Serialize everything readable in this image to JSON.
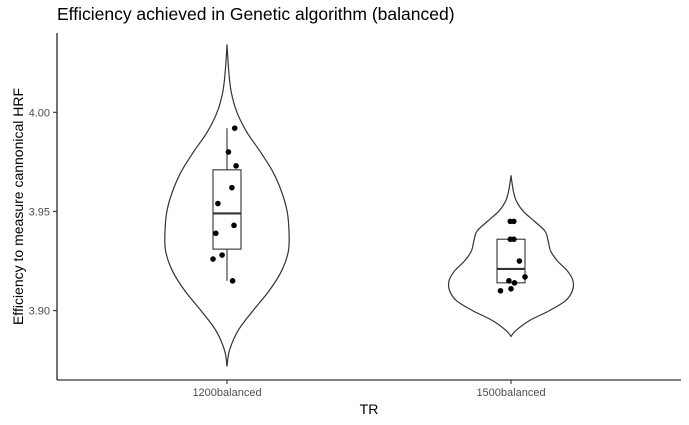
{
  "chart_data": {
    "type": "violin",
    "title": "Efficiency achieved in Genetic algorithm (balanced)",
    "xlabel": "TR",
    "ylabel": "Efficiency to measure cannonical HRF",
    "ylim": [
      3.865,
      4.04
    ],
    "yticks": [
      3.9,
      3.95,
      4.0
    ],
    "ytick_labels": [
      "3.90",
      "3.95",
      "4.00"
    ],
    "categories": [
      "1200balanced",
      "1500balanced"
    ],
    "grid": false,
    "legend": "none",
    "colors": {
      "outline": "#333333",
      "points": "#000000",
      "axis": "#000000",
      "tick_text": "#4d4d4d"
    },
    "groups": [
      {
        "category": "1200balanced",
        "violin_range": [
          3.872,
          4.034
        ],
        "violin_density": [
          [
            3.872,
            0.0
          ],
          [
            3.88,
            0.04
          ],
          [
            3.89,
            0.18
          ],
          [
            3.9,
            0.42
          ],
          [
            3.91,
            0.68
          ],
          [
            3.92,
            0.88
          ],
          [
            3.93,
            0.99
          ],
          [
            3.94,
            1.0
          ],
          [
            3.95,
            0.97
          ],
          [
            3.96,
            0.88
          ],
          [
            3.97,
            0.74
          ],
          [
            3.98,
            0.54
          ],
          [
            3.99,
            0.32
          ],
          [
            4.0,
            0.16
          ],
          [
            4.01,
            0.07
          ],
          [
            4.02,
            0.03
          ],
          [
            4.034,
            0.0
          ]
        ],
        "box": {
          "q1": 3.931,
          "median": 3.949,
          "q3": 3.971,
          "whisker_low": 3.915,
          "whisker_high": 3.992
        },
        "points": [
          [
            0.11,
            3.992
          ],
          [
            0.02,
            3.98
          ],
          [
            0.13,
            3.973
          ],
          [
            0.07,
            3.962
          ],
          [
            -0.13,
            3.954
          ],
          [
            0.1,
            3.943
          ],
          [
            -0.16,
            3.939
          ],
          [
            -0.07,
            3.928
          ],
          [
            -0.2,
            3.926
          ],
          [
            0.08,
            3.915
          ]
        ]
      },
      {
        "category": "1500balanced",
        "violin_range": [
          3.887,
          3.968
        ],
        "violin_density": [
          [
            3.887,
            0.0
          ],
          [
            3.89,
            0.08
          ],
          [
            3.895,
            0.3
          ],
          [
            3.9,
            0.62
          ],
          [
            3.905,
            0.88
          ],
          [
            3.91,
            0.99
          ],
          [
            3.915,
            1.0
          ],
          [
            3.92,
            0.91
          ],
          [
            3.925,
            0.75
          ],
          [
            3.93,
            0.64
          ],
          [
            3.935,
            0.6
          ],
          [
            3.94,
            0.55
          ],
          [
            3.945,
            0.38
          ],
          [
            3.95,
            0.2
          ],
          [
            3.955,
            0.09
          ],
          [
            3.96,
            0.04
          ],
          [
            3.968,
            0.0
          ]
        ],
        "box": {
          "q1": 3.914,
          "median": 3.921,
          "q3": 3.936,
          "whisker_low": 3.914,
          "whisker_high": 3.936
        },
        "points": [
          [
            -0.01,
            3.945
          ],
          [
            0.04,
            3.945
          ],
          [
            -0.01,
            3.936
          ],
          [
            0.04,
            3.936
          ],
          [
            0.12,
            3.925
          ],
          [
            0.2,
            3.917
          ],
          [
            -0.03,
            3.915
          ],
          [
            0.05,
            3.914
          ],
          [
            0.0,
            3.911
          ],
          [
            -0.15,
            3.91
          ]
        ]
      }
    ]
  }
}
